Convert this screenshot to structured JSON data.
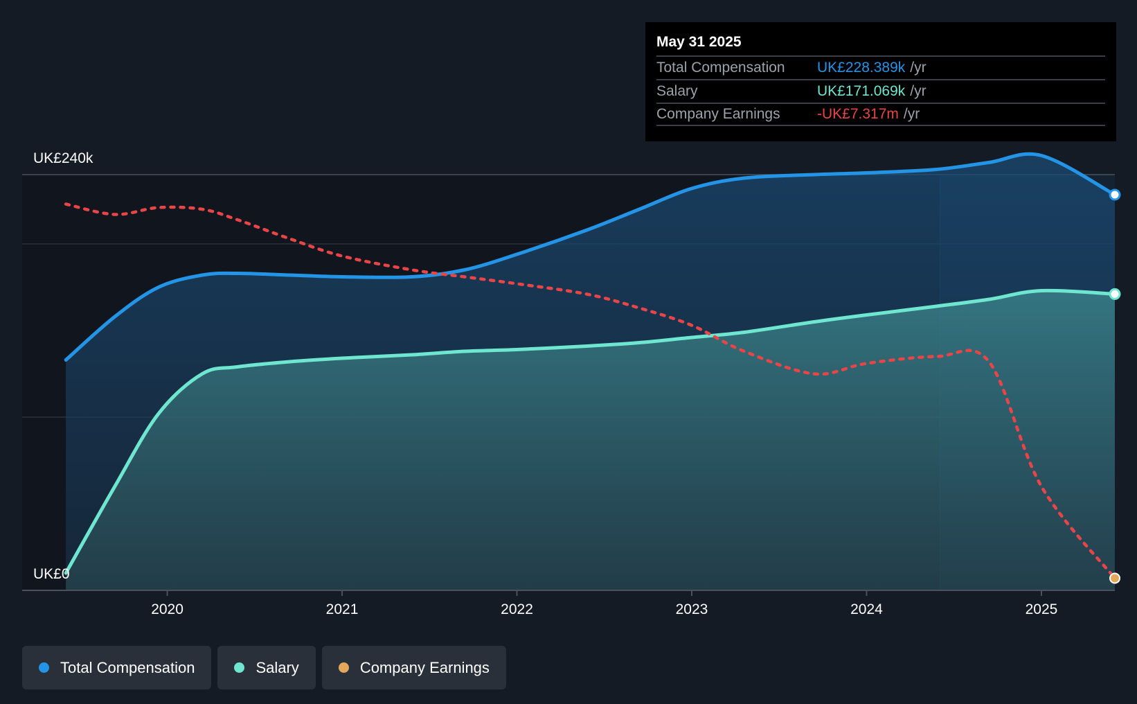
{
  "chart_data": {
    "type": "line",
    "title": "",
    "x": [
      2019.42,
      2019.7,
      2019.95,
      2020.2,
      2020.4,
      2020.7,
      2021.0,
      2021.4,
      2021.7,
      2022.0,
      2022.4,
      2022.7,
      2023.0,
      2023.3,
      2023.7,
      2024.0,
      2024.4,
      2024.7,
      2025.0,
      2025.42
    ],
    "series": [
      {
        "name": "Total Compensation",
        "color": "#2394e6",
        "style": "solid",
        "unit": "k",
        "values": [
          133,
          158,
          175,
          182,
          183,
          182,
          181,
          181,
          185,
          194,
          208,
          220,
          232,
          238,
          240,
          241,
          243,
          247,
          251,
          228.389
        ]
      },
      {
        "name": "Salary",
        "color": "#6ee6d0",
        "style": "solid",
        "unit": "k",
        "values": [
          10,
          60,
          102,
          125,
          129,
          132,
          134,
          136,
          138,
          139,
          141,
          143,
          146,
          149,
          155,
          159,
          164,
          168,
          173,
          171.069
        ]
      },
      {
        "name": "Company Earnings",
        "color": "#e84549",
        "style": "dotted",
        "unit": "relative",
        "values": [
          223,
          217,
          221,
          220,
          214,
          203,
          193,
          185,
          181,
          177,
          171,
          163,
          153,
          138,
          125,
          131,
          135,
          132,
          60,
          7
        ]
      }
    ],
    "xlim": [
      2019.17,
      2025.42
    ],
    "ylim": [
      0,
      240
    ],
    "x_ticks": [
      "2020",
      "2021",
      "2022",
      "2023",
      "2024",
      "2025"
    ],
    "y_tick_labels": {
      "top": "UK£240k",
      "bottom": "UK£0"
    },
    "gridlines_y": [
      0,
      100,
      200,
      240
    ],
    "highlight_from": 2024.42,
    "colors": {
      "background": "#151b24",
      "plot_bg": "#11161e",
      "grid": "#2b323b"
    }
  },
  "tooltip": {
    "date": "May 31 2025",
    "rows": [
      {
        "label": "Total Compensation",
        "value": "UK£228.389k",
        "unit": "/yr",
        "color": "#2394e6"
      },
      {
        "label": "Salary",
        "value": "UK£171.069k",
        "unit": "/yr",
        "color": "#6ee6d0"
      },
      {
        "label": "Company Earnings",
        "value": "-UK£7.317m",
        "unit": "/yr",
        "color": "#e84549"
      }
    ]
  },
  "legend": [
    {
      "label": "Total Compensation",
      "color": "#2394e6"
    },
    {
      "label": "Salary",
      "color": "#6ee6d0"
    },
    {
      "label": "Company Earnings",
      "color": "#e3a85a"
    }
  ]
}
